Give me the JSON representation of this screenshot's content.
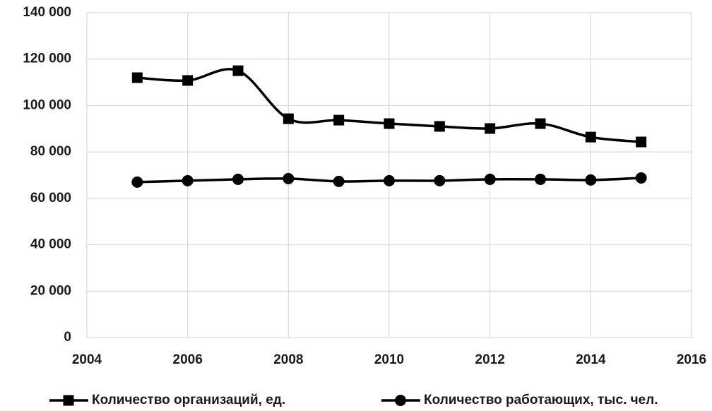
{
  "chart_data": {
    "type": "line",
    "x": [
      2005,
      2006,
      2007,
      2008,
      2009,
      2010,
      2011,
      2012,
      2013,
      2014,
      2015
    ],
    "series": [
      {
        "name": "Количество организаций, ед.",
        "color": "#000000",
        "marker": "square",
        "values": [
          112000,
          110800,
          115000,
          94300,
          93700,
          92200,
          91000,
          90100,
          92200,
          86400,
          84300
        ]
      },
      {
        "name": "Количество работающих, тыс. чел.",
        "color": "#000000",
        "marker": "circle",
        "values": [
          67000,
          67600,
          68200,
          68500,
          67300,
          67600,
          67600,
          68200,
          68200,
          67900,
          68800
        ]
      }
    ],
    "xlim": [
      2004,
      2016
    ],
    "xticks": [
      2004,
      2006,
      2008,
      2010,
      2012,
      2014,
      2016
    ],
    "ylim": [
      0,
      140000
    ],
    "yticks": [
      0,
      {
        "value": 20000,
        "label": "20 000"
      },
      {
        "value": 40000,
        "label": "40 000"
      },
      {
        "value": 60000,
        "label": "60 000"
      },
      {
        "value": 80000,
        "label": "80 000"
      },
      {
        "value": 100000,
        "label": "100 000"
      },
      {
        "value": 120000,
        "label": "120 000"
      },
      {
        "value": 140000,
        "label": "140 000"
      }
    ],
    "grid": true,
    "smooth": true,
    "legend": "bottom"
  }
}
